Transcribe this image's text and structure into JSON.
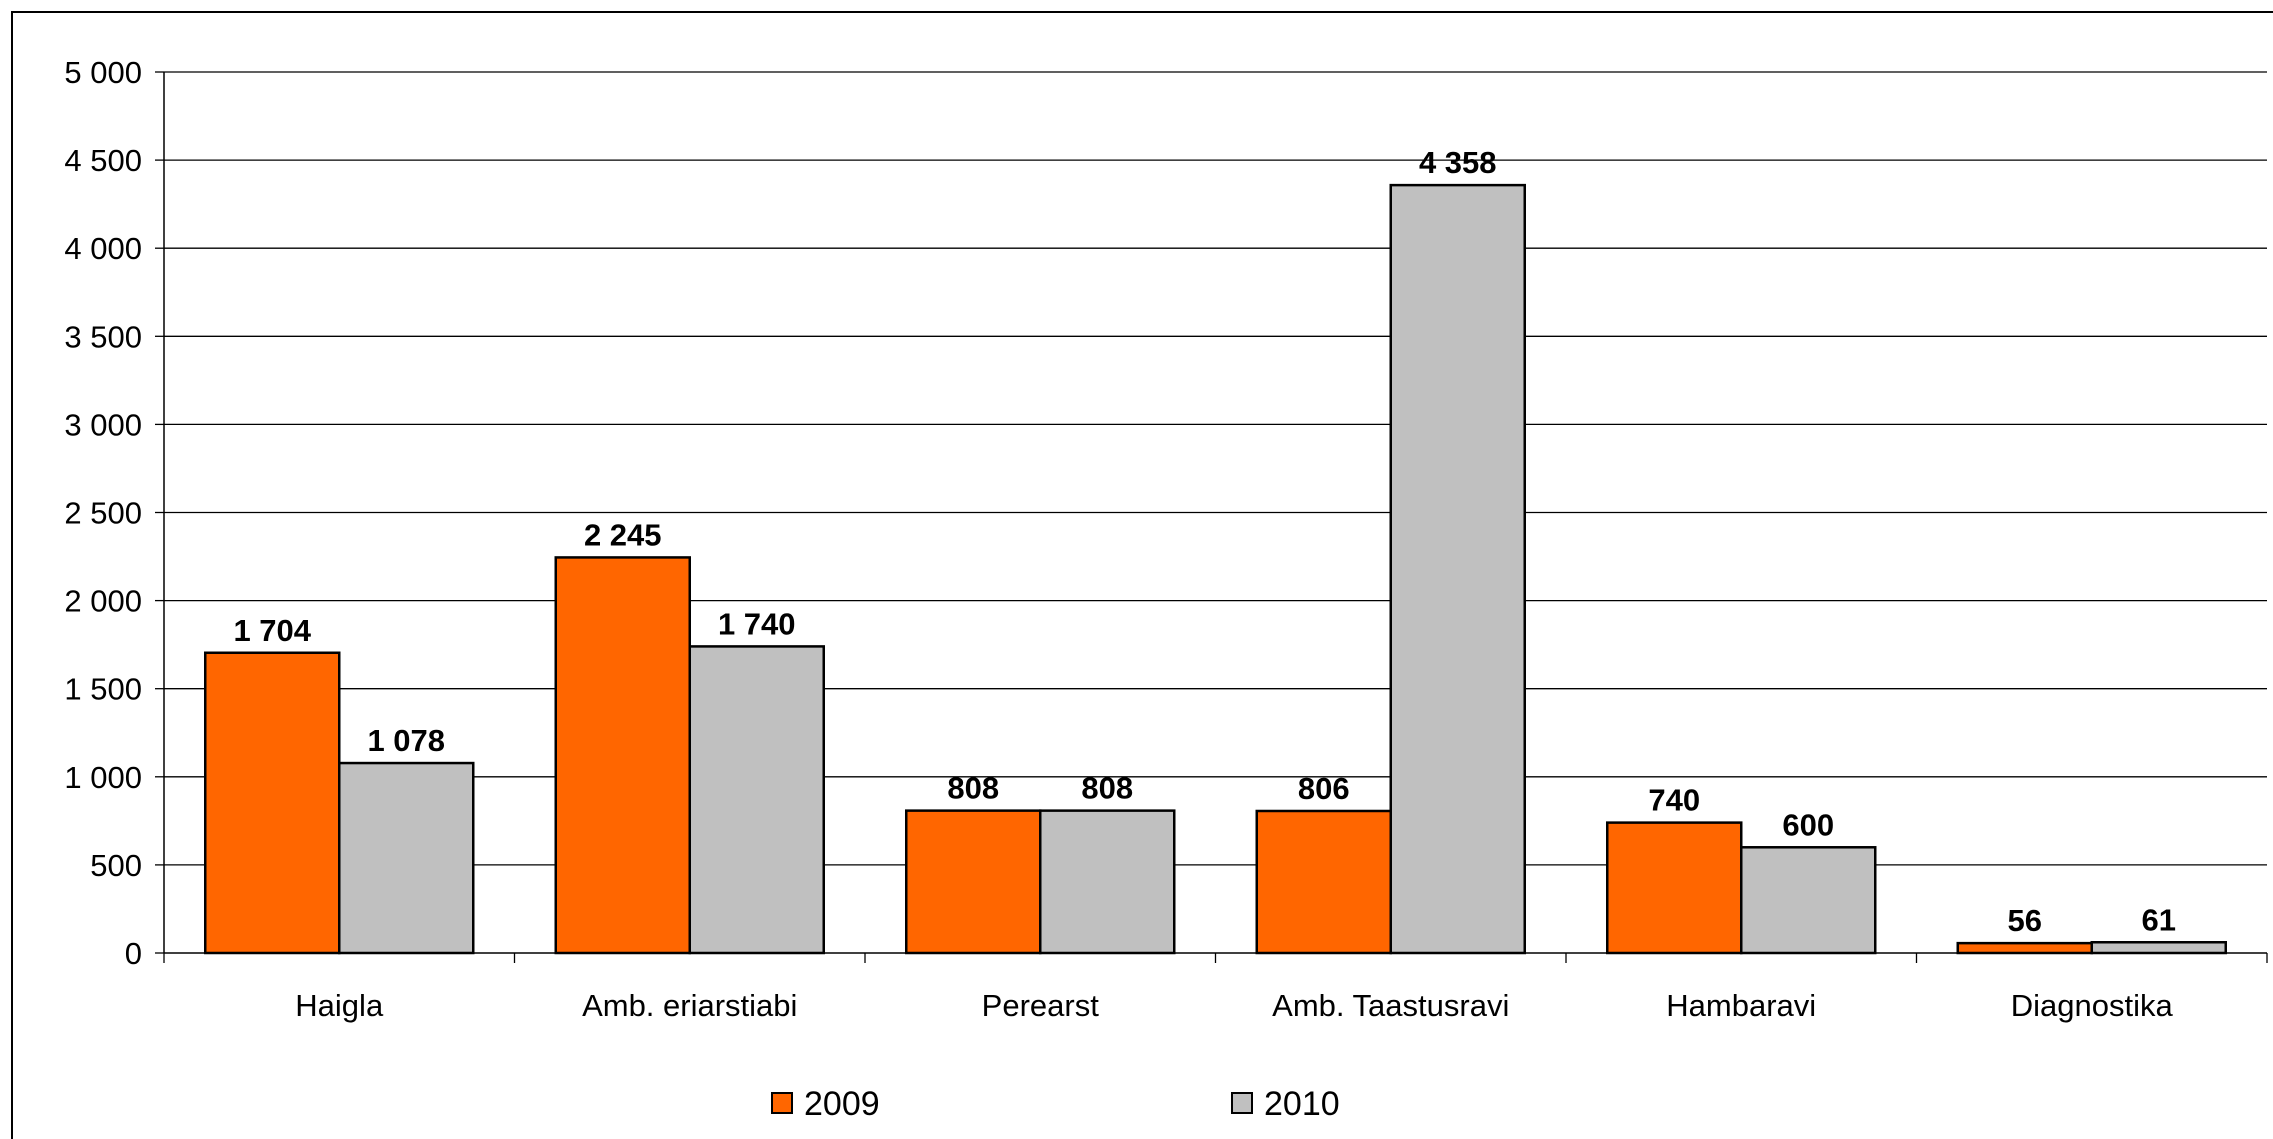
{
  "chart_data": {
    "type": "bar",
    "title": "",
    "xlabel": "",
    "ylabel": "",
    "categories": [
      "Haigla",
      "Amb. eriarstiabi",
      "Perearst",
      "Amb. Taastusravi",
      "Hambaravi",
      "Diagnostika"
    ],
    "series": [
      {
        "name": "2009",
        "color": "#FF6600",
        "values": [
          1704,
          2245,
          808,
          806,
          740,
          56
        ],
        "labels": [
          "1 704",
          "2 245",
          "808",
          "806",
          "740",
          "56"
        ]
      },
      {
        "name": "2010",
        "color": "#C0C0C0",
        "values": [
          1078,
          1740,
          808,
          4358,
          600,
          61
        ],
        "labels": [
          "1 078",
          "1 740",
          "808",
          "4 358",
          "600",
          "61"
        ]
      }
    ],
    "ylim": [
      0,
      5000
    ],
    "yticks": [
      0,
      500,
      1000,
      1500,
      2000,
      2500,
      3000,
      3500,
      4000,
      4500,
      5000
    ],
    "ytick_labels": [
      "0",
      "500",
      "1 000",
      "1 500",
      "2 000",
      "2 500",
      "3 000",
      "3 500",
      "4 000",
      "4 500",
      "5 000"
    ],
    "grid": "horizontal",
    "legend_position": "bottom"
  }
}
